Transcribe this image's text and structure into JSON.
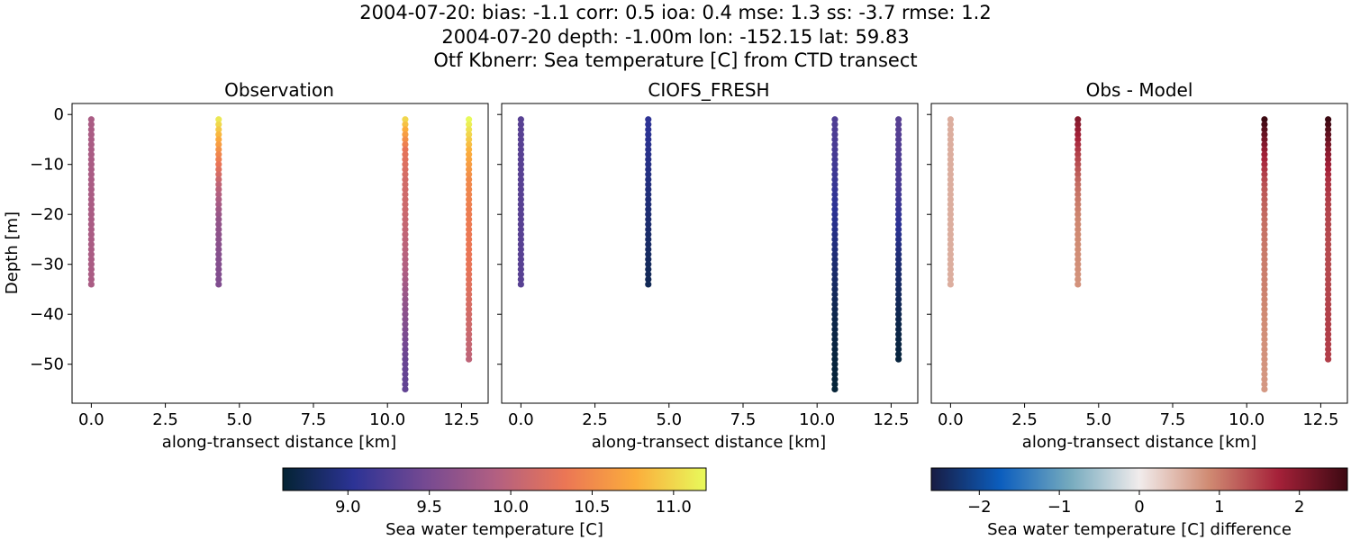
{
  "figure": {
    "title_lines": [
      "2004-07-20: bias: -1.1  corr: 0.5  ioa: 0.4  mse: 1.3  ss: -3.7  rmse: 1.2",
      "2004-07-20 depth: -1.00m lon: -152.15 lat: 59.83",
      "Otf Kbnerr: Sea temperature [C] from CTD transect"
    ]
  },
  "chart_data": [
    {
      "type": "scatter",
      "title": "Observation",
      "xlabel": "along-transect distance [km]",
      "ylabel": "Depth [m]",
      "xlim": [
        -0.65,
        13.4
      ],
      "ylim": [
        -57.8,
        2.2
      ],
      "x_ticks": [
        0.0,
        2.5,
        5.0,
        7.5,
        10.0,
        12.5
      ],
      "x_tick_labels": [
        "0.0",
        "2.5",
        "5.0",
        "7.5",
        "10.0",
        "12.5"
      ],
      "y_ticks": [
        0,
        -10,
        -20,
        -30,
        -40,
        -50
      ],
      "y_tick_labels": [
        "0",
        "−10",
        "−20",
        "−30",
        "−40",
        "−50"
      ],
      "colormap": "thermal",
      "casts": [
        {
          "x": 0.0,
          "depth_top": -1,
          "depth_bottom": -34,
          "values_top_to_bottom": [
            9.85,
            9.85
          ]
        },
        {
          "x": 4.3,
          "depth_top": -1,
          "depth_bottom": -34,
          "values_top_to_bottom": [
            11.1,
            10.5,
            10.0,
            9.7,
            9.6,
            9.55
          ]
        },
        {
          "x": 10.6,
          "depth_top": -1,
          "depth_bottom": -55,
          "values_top_to_bottom": [
            11.0,
            10.3,
            10.15,
            10.1,
            10.0,
            9.9,
            9.7,
            9.55,
            9.4,
            9.35
          ]
        },
        {
          "x": 12.75,
          "depth_top": -1,
          "depth_bottom": -49,
          "values_top_to_bottom": [
            11.2,
            10.8,
            10.5,
            10.4,
            10.35,
            10.3,
            10.2,
            10.1,
            10.0
          ]
        }
      ]
    },
    {
      "type": "scatter",
      "title": "CIOFS_FRESH",
      "xlabel": "along-transect distance [km]",
      "xlim": [
        -0.65,
        13.4
      ],
      "ylim": [
        -57.8,
        2.2
      ],
      "x_ticks": [
        0.0,
        2.5,
        5.0,
        7.5,
        10.0,
        12.5
      ],
      "x_tick_labels": [
        "0.0",
        "2.5",
        "5.0",
        "7.5",
        "10.0",
        "12.5"
      ],
      "y_ticks": [
        0,
        -10,
        -20,
        -30,
        -40,
        -50
      ],
      "colormap": "thermal",
      "casts": [
        {
          "x": 0.0,
          "depth_top": -1,
          "depth_bottom": -34,
          "values_top_to_bottom": [
            9.3,
            9.3
          ]
        },
        {
          "x": 4.3,
          "depth_top": -1,
          "depth_bottom": -34,
          "values_top_to_bottom": [
            9.05,
            8.95,
            8.85,
            8.75
          ]
        },
        {
          "x": 10.6,
          "depth_top": -1,
          "depth_bottom": -55,
          "values_top_to_bottom": [
            9.25,
            9.2,
            9.1,
            9.0,
            8.9,
            8.8,
            8.7,
            8.65,
            8.62
          ]
        },
        {
          "x": 12.75,
          "depth_top": -1,
          "depth_bottom": -49,
          "values_top_to_bottom": [
            9.3,
            9.25,
            9.2,
            9.05,
            8.9,
            8.8,
            8.7,
            8.65
          ]
        }
      ]
    },
    {
      "type": "scatter",
      "title": "Obs - Model",
      "xlabel": "along-transect distance [km]",
      "xlim": [
        -0.65,
        13.4
      ],
      "ylim": [
        -57.8,
        2.2
      ],
      "x_ticks": [
        0.0,
        2.5,
        5.0,
        7.5,
        10.0,
        12.5
      ],
      "x_tick_labels": [
        "0.0",
        "2.5",
        "5.0",
        "7.5",
        "10.0",
        "12.5"
      ],
      "y_ticks": [
        0,
        -10,
        -20,
        -30,
        -40,
        -50
      ],
      "colormap": "balance",
      "casts": [
        {
          "x": 0.0,
          "depth_top": -1,
          "depth_bottom": -34,
          "values_top_to_bottom": [
            0.55,
            0.55
          ]
        },
        {
          "x": 4.3,
          "depth_top": -1,
          "depth_bottom": -34,
          "values_top_to_bottom": [
            2.0,
            1.5,
            1.1,
            0.9,
            0.85,
            0.8
          ]
        },
        {
          "x": 10.6,
          "depth_top": -1,
          "depth_bottom": -55,
          "values_top_to_bottom": [
            2.6,
            1.8,
            1.3,
            1.1,
            1.0,
            0.95,
            0.85,
            0.8,
            0.75
          ]
        },
        {
          "x": 12.75,
          "depth_top": -1,
          "depth_bottom": -49,
          "values_top_to_bottom": [
            2.6,
            2.0,
            1.6,
            1.45,
            1.4,
            1.4,
            1.45,
            1.5,
            1.5
          ]
        }
      ]
    }
  ],
  "colorbars": [
    {
      "label": "Sea water temperature [C]",
      "colormap": "thermal",
      "range": [
        8.6,
        11.2
      ],
      "ticks": [
        9.0,
        9.5,
        10.0,
        10.5,
        11.0
      ],
      "tick_labels": [
        "9.0",
        "9.5",
        "10.0",
        "10.5",
        "11.0"
      ],
      "gradient_stops": [
        "#042333",
        "#2c3395",
        "#744992",
        "#b15f82",
        "#eb7655",
        "#fbad3c",
        "#e8fa5b"
      ]
    },
    {
      "label": "Sea water temperature [C] difference",
      "colormap": "balance",
      "range": [
        -2.6,
        2.6
      ],
      "ticks": [
        -2,
        -1,
        0,
        1,
        2
      ],
      "tick_labels": [
        "−2",
        "−1",
        "0",
        "1",
        "2"
      ],
      "gradient_stops": [
        "#181c43",
        "#0c5ebe",
        "#75aabe",
        "#f1ecec",
        "#d08b73",
        "#a52139",
        "#3c0912"
      ]
    }
  ]
}
